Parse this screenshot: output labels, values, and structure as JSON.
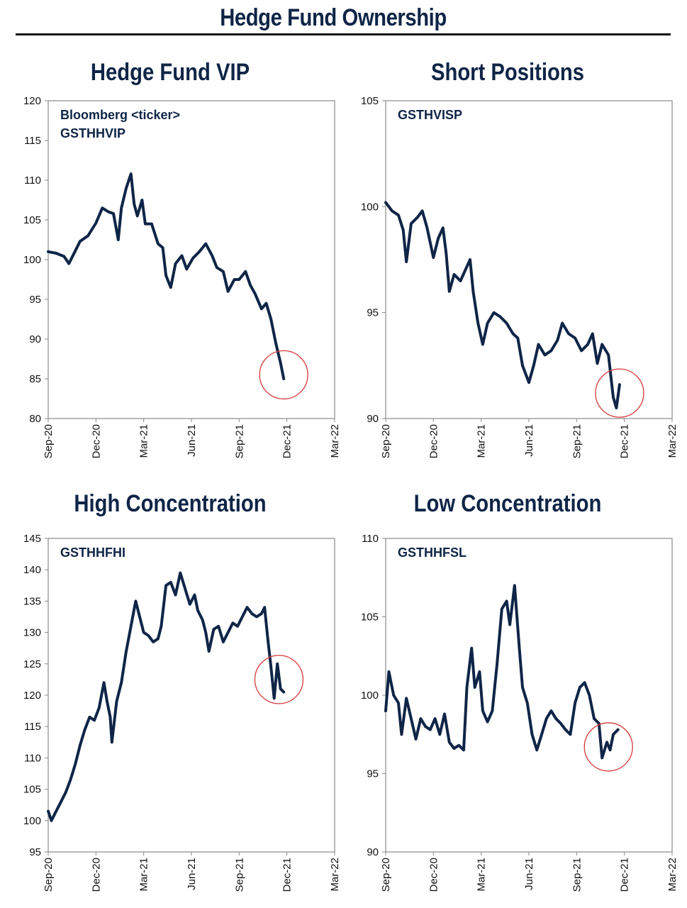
{
  "title": "Hedge Fund Ownership",
  "colors": {
    "line": "#0f2547",
    "highlight_circle": "#d43a3a",
    "axis": "#8a8a8a"
  },
  "chart_data": [
    {
      "type": "line",
      "title": "Hedge Fund VIP",
      "annotation": [
        "Bloomberg <ticker>",
        "GSTHHVIP"
      ],
      "ylim": [
        80,
        120
      ],
      "yticks": [
        80,
        85,
        90,
        95,
        100,
        105,
        110,
        115,
        120
      ],
      "xticks": [
        "Sep-20",
        "Dec-20",
        "Mar-21",
        "Jun-21",
        "Sep-21",
        "Dec-21",
        "Mar-22"
      ],
      "highlight": {
        "month": 14.8,
        "value": 85.5
      },
      "series": [
        {
          "points": [
            [
              0,
              101
            ],
            [
              0.5,
              100.8
            ],
            [
              1,
              100.4
            ],
            [
              1.3,
              99.5
            ],
            [
              1.6,
              100.7
            ],
            [
              2,
              102.3
            ],
            [
              2.5,
              103
            ],
            [
              3,
              104.6
            ],
            [
              3.4,
              106.5
            ],
            [
              3.8,
              106
            ],
            [
              4.1,
              105.8
            ],
            [
              4.4,
              102.5
            ],
            [
              4.6,
              106.5
            ],
            [
              4.9,
              109
            ],
            [
              5.2,
              110.8
            ],
            [
              5.4,
              107
            ],
            [
              5.6,
              105.5
            ],
            [
              5.9,
              107.5
            ],
            [
              6.1,
              104.5
            ],
            [
              6.5,
              104.5
            ],
            [
              6.9,
              102
            ],
            [
              7.2,
              101.5
            ],
            [
              7.4,
              98
            ],
            [
              7.7,
              96.5
            ],
            [
              8,
              99.5
            ],
            [
              8.4,
              100.5
            ],
            [
              8.7,
              98.8
            ],
            [
              9.1,
              100.2
            ],
            [
              9.5,
              101
            ],
            [
              9.9,
              102
            ],
            [
              10.3,
              100.5
            ],
            [
              10.6,
              99
            ],
            [
              11,
              98.5
            ],
            [
              11.3,
              96
            ],
            [
              11.7,
              97.5
            ],
            [
              12,
              97.5
            ],
            [
              12.4,
              98.5
            ],
            [
              12.7,
              96.8
            ],
            [
              13,
              95.7
            ],
            [
              13.4,
              93.8
            ],
            [
              13.7,
              94.5
            ],
            [
              14,
              92.5
            ],
            [
              14.3,
              89.5
            ],
            [
              14.6,
              87
            ],
            [
              14.8,
              85
            ]
          ]
        }
      ]
    },
    {
      "type": "line",
      "title": "Short Positions",
      "annotation": [
        "GSTHVISP"
      ],
      "ylim": [
        90,
        105
      ],
      "yticks": [
        90,
        95,
        100,
        105
      ],
      "xticks": [
        "Sep-20",
        "Dec-20",
        "Mar-21",
        "Jun-21",
        "Sep-21",
        "Dec-21",
        "Mar-22"
      ],
      "highlight": {
        "month": 14.7,
        "value": 91.2
      },
      "series": [
        {
          "points": [
            [
              0,
              100.2
            ],
            [
              0.4,
              99.8
            ],
            [
              0.8,
              99.6
            ],
            [
              1.1,
              98.9
            ],
            [
              1.3,
              97.4
            ],
            [
              1.6,
              99.2
            ],
            [
              2,
              99.5
            ],
            [
              2.3,
              99.8
            ],
            [
              2.6,
              99
            ],
            [
              3,
              97.6
            ],
            [
              3.3,
              98.5
            ],
            [
              3.6,
              99
            ],
            [
              3.8,
              97.8
            ],
            [
              4,
              96
            ],
            [
              4.3,
              96.8
            ],
            [
              4.7,
              96.5
            ],
            [
              5,
              97
            ],
            [
              5.3,
              97.5
            ],
            [
              5.5,
              96
            ],
            [
              5.8,
              94.5
            ],
            [
              6.1,
              93.5
            ],
            [
              6.4,
              94.5
            ],
            [
              6.8,
              95
            ],
            [
              7.2,
              94.8
            ],
            [
              7.6,
              94.5
            ],
            [
              8,
              94
            ],
            [
              8.3,
              93.8
            ],
            [
              8.6,
              92.5
            ],
            [
              9,
              91.7
            ],
            [
              9.3,
              92.5
            ],
            [
              9.6,
              93.5
            ],
            [
              10,
              93
            ],
            [
              10.4,
              93.2
            ],
            [
              10.8,
              93.7
            ],
            [
              11.1,
              94.5
            ],
            [
              11.5,
              94
            ],
            [
              11.9,
              93.8
            ],
            [
              12.3,
              93.2
            ],
            [
              12.7,
              93.5
            ],
            [
              13,
              94
            ],
            [
              13.3,
              92.6
            ],
            [
              13.6,
              93.5
            ],
            [
              14,
              93
            ],
            [
              14.3,
              91
            ],
            [
              14.5,
              90.5
            ],
            [
              14.7,
              91.6
            ]
          ]
        }
      ]
    },
    {
      "type": "line",
      "title": "High Concentration",
      "annotation": [
        "GSTHHFHI"
      ],
      "ylim": [
        95,
        145
      ],
      "yticks": [
        95,
        100,
        105,
        110,
        115,
        120,
        125,
        130,
        135,
        140,
        145
      ],
      "xticks": [
        "Sep-20",
        "Dec-20",
        "Mar-21",
        "Jun-21",
        "Sep-21",
        "Dec-21",
        "Mar-22"
      ],
      "highlight": {
        "month": 14.5,
        "value": 122.5
      },
      "series": [
        {
          "points": [
            [
              0,
              101.5
            ],
            [
              0.2,
              100
            ],
            [
              0.5,
              101.5
            ],
            [
              0.8,
              103
            ],
            [
              1.1,
              104.5
            ],
            [
              1.4,
              106.5
            ],
            [
              1.7,
              109
            ],
            [
              2,
              112
            ],
            [
              2.3,
              114.5
            ],
            [
              2.6,
              116.5
            ],
            [
              2.9,
              116
            ],
            [
              3.2,
              118
            ],
            [
              3.5,
              122
            ],
            [
              3.7,
              119
            ],
            [
              3.9,
              116.5
            ],
            [
              4,
              112.5
            ],
            [
              4.3,
              119
            ],
            [
              4.6,
              122
            ],
            [
              4.9,
              127
            ],
            [
              5.2,
              131
            ],
            [
              5.5,
              135
            ],
            [
              5.7,
              133
            ],
            [
              6,
              130
            ],
            [
              6.3,
              129.5
            ],
            [
              6.6,
              128.5
            ],
            [
              6.9,
              129
            ],
            [
              7.1,
              131
            ],
            [
              7.4,
              137.5
            ],
            [
              7.7,
              138
            ],
            [
              8,
              136
            ],
            [
              8.3,
              139.5
            ],
            [
              8.6,
              137
            ],
            [
              8.9,
              134.5
            ],
            [
              9.2,
              136
            ],
            [
              9.4,
              133.5
            ],
            [
              9.7,
              132
            ],
            [
              9.9,
              130
            ],
            [
              10.1,
              127
            ],
            [
              10.4,
              130.5
            ],
            [
              10.7,
              131
            ],
            [
              11,
              128.5
            ],
            [
              11.3,
              130
            ],
            [
              11.6,
              131.5
            ],
            [
              11.9,
              131
            ],
            [
              12.2,
              132.5
            ],
            [
              12.5,
              134
            ],
            [
              12.8,
              133
            ],
            [
              13.1,
              132.5
            ],
            [
              13.4,
              133
            ],
            [
              13.6,
              134
            ],
            [
              13.8,
              129
            ],
            [
              14,
              124.5
            ],
            [
              14.2,
              119.5
            ],
            [
              14.4,
              125
            ],
            [
              14.6,
              121
            ],
            [
              14.8,
              120.5
            ]
          ]
        }
      ]
    },
    {
      "type": "line",
      "title": "Low Concentration",
      "annotation": [
        "GSTHHFSL"
      ],
      "ylim": [
        90,
        110
      ],
      "yticks": [
        90,
        95,
        100,
        105,
        110
      ],
      "xticks": [
        "Sep-20",
        "Dec-20",
        "Mar-21",
        "Jun-21",
        "Sep-21",
        "Dec-21",
        "Mar-22"
      ],
      "highlight": {
        "month": 14.0,
        "value": 96.7
      },
      "series": [
        {
          "points": [
            [
              0,
              99
            ],
            [
              0.2,
              101.5
            ],
            [
              0.5,
              100
            ],
            [
              0.8,
              99.5
            ],
            [
              1,
              97.5
            ],
            [
              1.3,
              99.8
            ],
            [
              1.6,
              98.5
            ],
            [
              1.9,
              97.2
            ],
            [
              2.2,
              98.5
            ],
            [
              2.5,
              98
            ],
            [
              2.8,
              97.8
            ],
            [
              3.1,
              98.5
            ],
            [
              3.4,
              97.5
            ],
            [
              3.7,
              98.8
            ],
            [
              4,
              97
            ],
            [
              4.3,
              96.6
            ],
            [
              4.6,
              96.8
            ],
            [
              4.9,
              96.5
            ],
            [
              5.1,
              100.5
            ],
            [
              5.4,
              103
            ],
            [
              5.6,
              100.5
            ],
            [
              5.9,
              101.5
            ],
            [
              6.1,
              99
            ],
            [
              6.4,
              98.3
            ],
            [
              6.7,
              99
            ],
            [
              7,
              102
            ],
            [
              7.3,
              105.5
            ],
            [
              7.6,
              106
            ],
            [
              7.8,
              104.5
            ],
            [
              8.1,
              107
            ],
            [
              8.4,
              103
            ],
            [
              8.6,
              100.5
            ],
            [
              8.9,
              99.5
            ],
            [
              9.2,
              97.5
            ],
            [
              9.5,
              96.5
            ],
            [
              9.8,
              97.5
            ],
            [
              10.1,
              98.5
            ],
            [
              10.4,
              99
            ],
            [
              10.7,
              98.5
            ],
            [
              11,
              98.2
            ],
            [
              11.3,
              97.8
            ],
            [
              11.6,
              97.5
            ],
            [
              11.9,
              99.5
            ],
            [
              12.2,
              100.5
            ],
            [
              12.5,
              100.8
            ],
            [
              12.8,
              100
            ],
            [
              13.1,
              98.5
            ],
            [
              13.4,
              98.2
            ],
            [
              13.6,
              96
            ],
            [
              13.9,
              97
            ],
            [
              14.1,
              96.5
            ],
            [
              14.3,
              97.5
            ],
            [
              14.6,
              97.8
            ]
          ]
        }
      ]
    }
  ]
}
